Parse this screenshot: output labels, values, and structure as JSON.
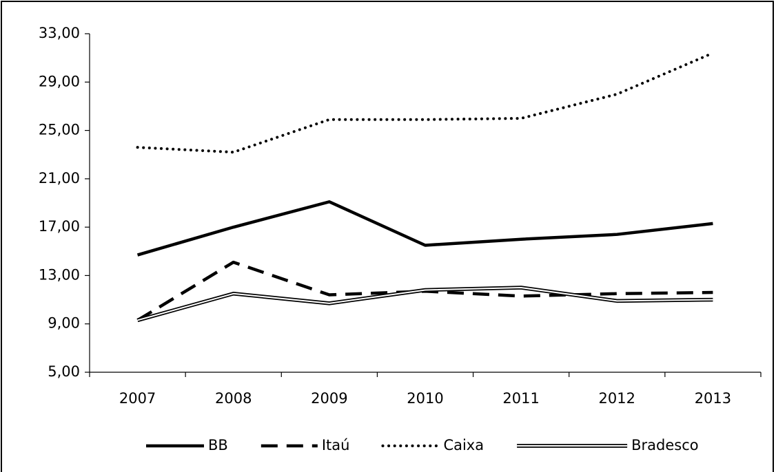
{
  "chart_data": {
    "type": "line",
    "categories": [
      "2007",
      "2008",
      "2009",
      "2010",
      "2011",
      "2012",
      "2013"
    ],
    "series": [
      {
        "name": "BB",
        "color": "#000000",
        "style": "solid",
        "values": [
          14.7,
          17.0,
          19.1,
          15.5,
          16.0,
          16.4,
          17.3
        ]
      },
      {
        "name": "Itaú",
        "color": "#000000",
        "style": "dashed",
        "values": [
          9.3,
          14.1,
          11.4,
          11.7,
          11.3,
          11.5,
          11.6
        ]
      },
      {
        "name": "Caixa",
        "color": "#000000",
        "style": "dotted",
        "values": [
          23.6,
          23.2,
          25.9,
          25.9,
          26.0,
          28.0,
          31.4
        ]
      },
      {
        "name": "Bradesco",
        "color": "#000000",
        "style": "double",
        "values": [
          9.3,
          11.5,
          10.7,
          11.8,
          12.0,
          10.9,
          11.0
        ]
      }
    ],
    "ylim": [
      5,
      33
    ],
    "yticks": [
      {
        "value": 5,
        "label": "5,00"
      },
      {
        "value": 9,
        "label": "9,00"
      },
      {
        "value": 13,
        "label": "13,00"
      },
      {
        "value": 17,
        "label": "17,00"
      },
      {
        "value": 21,
        "label": "21,00"
      },
      {
        "value": 25,
        "label": "25,00"
      },
      {
        "value": 29,
        "label": "29,00"
      },
      {
        "value": 33,
        "label": "33,00"
      }
    ],
    "grid": false,
    "legend": "bottom"
  }
}
